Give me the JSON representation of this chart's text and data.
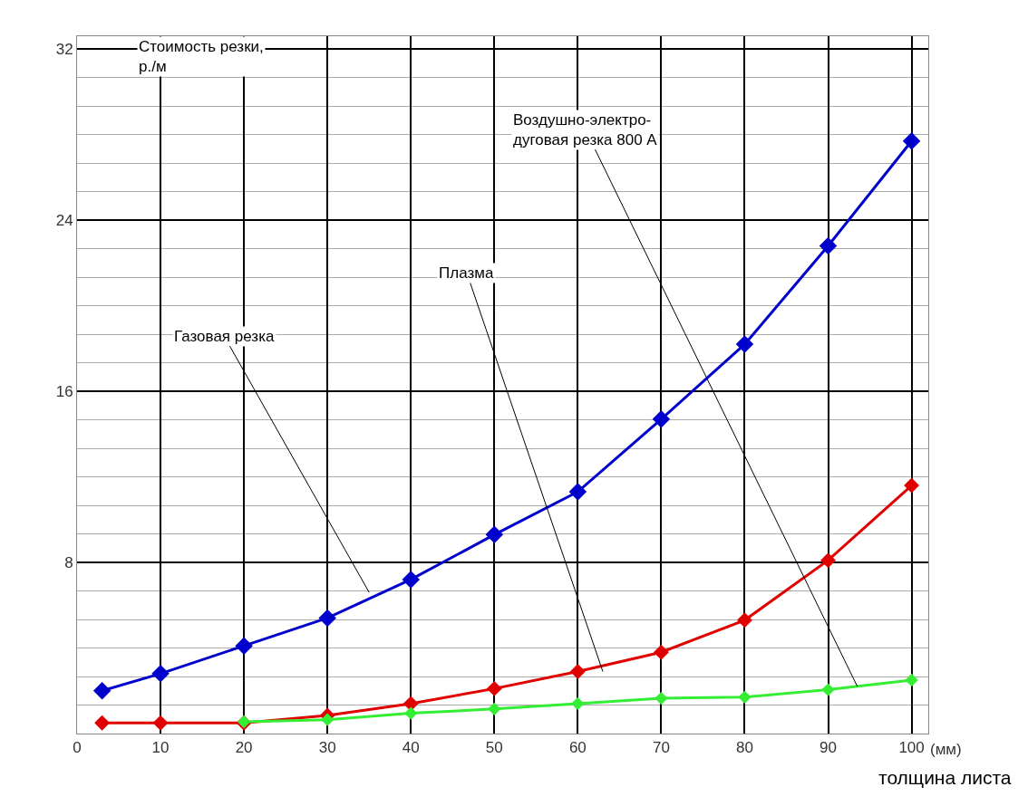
{
  "chart_data": {
    "type": "line",
    "ylabel": "Стоимость резки,\nр./м",
    "xlabel": "толщина листа",
    "xlim": [
      0,
      102
    ],
    "ylim": [
      0,
      32.6
    ],
    "xticks": [
      0,
      10,
      20,
      30,
      40,
      50,
      60,
      70,
      80,
      90,
      100
    ],
    "yticks": [
      8,
      16,
      24,
      32
    ],
    "grid": true,
    "marker": "diamond",
    "line_style": "solid",
    "series": [
      {
        "color": "#0000cc",
        "x": [
          3,
          10,
          20,
          30,
          40,
          50,
          60,
          70,
          80,
          90,
          100
        ],
        "values": [
          2,
          2.8,
          4.1,
          5.4,
          7.2,
          9.3,
          11.3,
          14.7,
          18.2,
          22.8,
          27.7
        ]
      },
      {
        "color": "#e00000",
        "x": [
          3,
          10,
          20,
          30,
          40,
          50,
          60,
          70,
          80,
          90,
          100
        ],
        "values": [
          0.5,
          0.5,
          0.5,
          0.85,
          1.4,
          2.1,
          2.9,
          3.8,
          5.3,
          8.1,
          11.6
        ]
      },
      {
        "color": "#33ee33",
        "x": [
          20,
          30,
          40,
          50,
          60,
          70,
          80,
          90,
          100
        ],
        "values": [
          0.55,
          0.65,
          0.95,
          1.15,
          1.4,
          1.65,
          1.7,
          2.05,
          2.5
        ]
      }
    ],
    "annotations": [
      {
        "text": "Газовая резка",
        "x": 35,
        "y": 6.6
      },
      {
        "text": "Плазма",
        "x": 63,
        "y": 2.9
      },
      {
        "text": "Воздушно-электро-\nдуговая резка 800 А",
        "x": 93.5,
        "y": 2.2
      },
      "(мм)"
    ]
  }
}
